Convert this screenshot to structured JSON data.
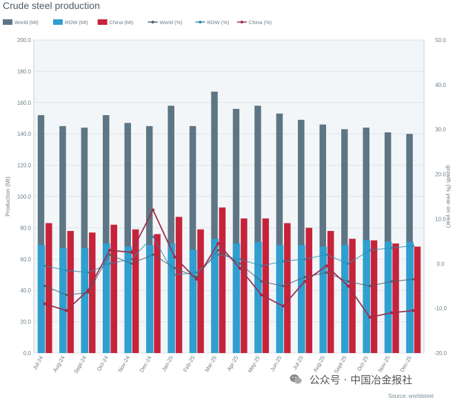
{
  "chart_data": {
    "type": "bar",
    "title": "Crude steel production",
    "ylabel": "Production (Mt)",
    "y2label": "growth (% year on year)",
    "ylim": [
      0,
      200
    ],
    "y2lim": [
      -20,
      50
    ],
    "yticks": [
      "0.0",
      "20.0",
      "40.0",
      "60.0",
      "80.0",
      "100.0",
      "120.0",
      "140.0",
      "160.0",
      "180.0",
      "200.0"
    ],
    "y2ticks": [
      "-20.0",
      "-10.0",
      "0.0",
      "10.0",
      "20.0",
      "30.0",
      "40.0",
      "50.0"
    ],
    "categories": [
      "Jul-24",
      "Aug-24",
      "Sept-24",
      "Oct-24",
      "Nov-24",
      "Dec-24",
      "Jan-25",
      "Feb-25",
      "Mar-25",
      "Apr-25",
      "May-25",
      "Jun-25",
      "Jul-25",
      "Aug-25",
      "Sept-25",
      "Oct-25",
      "Nov-25",
      "Dec-25"
    ],
    "series": [
      {
        "name": "World (Mt)",
        "kind": "bar",
        "color": "#5e7585",
        "values": [
          152,
          145,
          144,
          152,
          147,
          145,
          158,
          145,
          167,
          156,
          158,
          153,
          149,
          146,
          143,
          144,
          141,
          140
        ]
      },
      {
        "name": "ROW (Mt)",
        "kind": "bar",
        "color": "#2f9fd0",
        "values": [
          69,
          67,
          67,
          70,
          68,
          69,
          70,
          66,
          73,
          70,
          71,
          69,
          69,
          68,
          69,
          72,
          71,
          71
        ]
      },
      {
        "name": "China (Mt)",
        "kind": "bar",
        "color": "#c6233a",
        "values": [
          83,
          78,
          77,
          82,
          79,
          76,
          87,
          79,
          93,
          86,
          86,
          83,
          80,
          78,
          73,
          72,
          70,
          68
        ]
      },
      {
        "name": "World (%)",
        "kind": "line",
        "color": "#4d5f6b",
        "values": [
          -5,
          -7,
          -6.5,
          2,
          0,
          2,
          -1,
          -3,
          3,
          0,
          -4,
          -5,
          -3,
          -2,
          -4,
          -5,
          -4,
          -3.5
        ]
      },
      {
        "name": "ROW (%)",
        "kind": "line",
        "color": "#2a8fb5",
        "values": [
          -0.5,
          -1.5,
          -2,
          0,
          1,
          6,
          -2.5,
          -2,
          2,
          1,
          -0.5,
          0.5,
          1,
          2,
          0,
          3,
          3.5,
          4
        ]
      },
      {
        "name": "China (%)",
        "kind": "line",
        "color": "#9c2f4c",
        "values": [
          -9,
          -10.5,
          -6,
          3,
          2.5,
          12,
          1.5,
          -3.5,
          4.5,
          -1,
          -7,
          -9.5,
          -4,
          -0.5,
          -5,
          -12,
          -11,
          -10.5
        ]
      }
    ],
    "legend": "top",
    "grid": true
  },
  "watermark": {
    "text": "公众号 · 中国冶金报社"
  },
  "source": "Source: worldsteel"
}
